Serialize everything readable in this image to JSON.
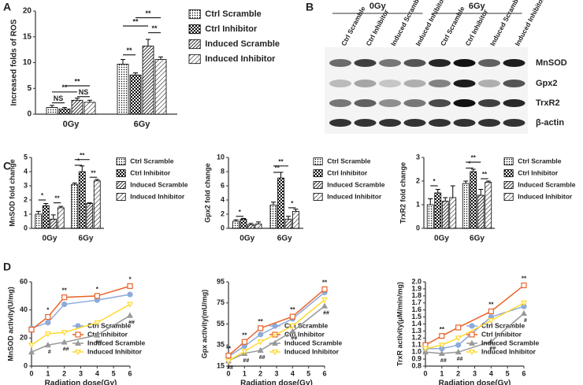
{
  "panels": [
    "A",
    "B",
    "C",
    "D"
  ],
  "blot": {
    "groups": [
      "0Gy",
      "6Gy"
    ],
    "lanes": [
      "Ctrl Scramble",
      "Ctrl Inhibitor",
      "Induced Scramble",
      "Induced Inhibitor",
      "Ctrl Scramble",
      "Ctrl Inhibitor",
      "Induced Scramble",
      "Induced Inhibitor"
    ],
    "rows": [
      "MnSOD",
      "Gpx2",
      "TrxR2",
      "β-actin"
    ]
  },
  "chart_data": [
    {
      "type": "bar",
      "ylabel": "Increased folds of ROS",
      "categories": [
        "0Gy",
        "6Gy"
      ],
      "ylim": [
        0,
        20
      ],
      "yticks": [
        0,
        5,
        10,
        15,
        20
      ],
      "series": [
        {
          "name": "Ctrl Scramble",
          "color": "#000000",
          "pattern": "dots",
          "values": [
            1.3,
            9.7
          ],
          "errors": [
            0.4,
            0.9
          ]
        },
        {
          "name": "Ctrl Inhibitor",
          "color": "#000000",
          "pattern": "checker",
          "values": [
            1.0,
            7.6
          ],
          "errors": [
            0.3,
            0.4
          ]
        },
        {
          "name": "Induced Scramble",
          "color": "#000000",
          "pattern": "hatch",
          "values": [
            2.7,
            13.2
          ],
          "errors": [
            0.4,
            1.3
          ]
        },
        {
          "name": "Induced Inhibitor",
          "color": "#000000",
          "pattern": "stripes",
          "values": [
            2.3,
            10.6
          ],
          "errors": [
            0.4,
            0.5
          ]
        }
      ],
      "annotations": [
        "NS",
        "NS",
        "**",
        "**",
        "**",
        "**",
        "**",
        "**"
      ]
    },
    {
      "type": "bar",
      "ylabel": "MnSOD fold change",
      "categories": [
        "0Gy",
        "6Gy"
      ],
      "ylim": [
        0,
        5
      ],
      "yticks": [
        0,
        1,
        2,
        3,
        4,
        5
      ],
      "series": [
        {
          "name": "Ctrl Scramble",
          "color": "#000000",
          "pattern": "dots",
          "values": [
            1.0,
            3.1
          ],
          "errors": [
            0.2,
            0.1
          ]
        },
        {
          "name": "Ctrl Inhibitor",
          "color": "#000000",
          "pattern": "checker",
          "values": [
            1.6,
            4.0
          ],
          "errors": [
            0.15,
            0.4
          ]
        },
        {
          "name": "Induced Scramble",
          "color": "#000000",
          "pattern": "hatch",
          "values": [
            0.65,
            1.75
          ],
          "errors": [
            0.3,
            0.05
          ]
        },
        {
          "name": "Induced Inhibitor",
          "color": "#000000",
          "pattern": "stripes",
          "values": [
            1.45,
            3.35
          ],
          "errors": [
            0.1,
            0.1
          ]
        }
      ],
      "annotations": [
        "*",
        "**",
        "*",
        "**",
        "**"
      ]
    },
    {
      "type": "bar",
      "ylabel": "Gpx2 fold change",
      "categories": [
        "0Gy",
        "6Gy"
      ],
      "ylim": [
        0,
        10
      ],
      "yticks": [
        0,
        2,
        4,
        6,
        8,
        10
      ],
      "series": [
        {
          "name": "Ctrl Scramble",
          "color": "#000000",
          "pattern": "dots",
          "values": [
            1.0,
            3.3
          ],
          "errors": [
            0.2,
            0.4
          ]
        },
        {
          "name": "Ctrl Inhibitor",
          "color": "#000000",
          "pattern": "checker",
          "values": [
            1.3,
            7.1
          ],
          "errors": [
            0.1,
            0.8
          ]
        },
        {
          "name": "Induced Scramble",
          "color": "#000000",
          "pattern": "hatch",
          "values": [
            0.5,
            1.3
          ],
          "errors": [
            0.2,
            0.4
          ]
        },
        {
          "name": "Induced Inhibitor",
          "color": "#000000",
          "pattern": "stripes",
          "values": [
            0.6,
            2.4
          ],
          "errors": [
            0.3,
            0.3
          ]
        }
      ],
      "annotations": [
        "*",
        "**",
        "**",
        "*"
      ]
    },
    {
      "type": "bar",
      "ylabel": "TrxR2 fold change",
      "categories": [
        "0Gy",
        "6Gy"
      ],
      "ylim": [
        0,
        3
      ],
      "yticks": [
        0,
        1,
        2,
        3
      ],
      "series": [
        {
          "name": "Ctrl Scramble",
          "color": "#000000",
          "pattern": "dots",
          "values": [
            1.0,
            1.9
          ],
          "errors": [
            0.25,
            0.1
          ]
        },
        {
          "name": "Ctrl Inhibitor",
          "color": "#000000",
          "pattern": "checker",
          "values": [
            1.5,
            2.4
          ],
          "errors": [
            0.15,
            0.1
          ]
        },
        {
          "name": "Induced Scramble",
          "color": "#000000",
          "pattern": "hatch",
          "values": [
            1.15,
            1.4
          ],
          "errors": [
            0.15,
            0.25
          ]
        },
        {
          "name": "Induced Inhibitor",
          "color": "#000000",
          "pattern": "stripes",
          "values": [
            1.3,
            1.95
          ],
          "errors": [
            0.5,
            0.05
          ]
        }
      ],
      "annotations": [
        "*",
        "*",
        "**",
        "**"
      ]
    },
    {
      "type": "line",
      "ylabel": "MnSOD activity(U/mg)",
      "xlabel": "Radiation dose(Gy)",
      "x": [
        0,
        1,
        2,
        4,
        6
      ],
      "xlim": [
        0,
        6
      ],
      "xticks": [
        0,
        1,
        2,
        3,
        4,
        5,
        6
      ],
      "ylim": [
        0,
        60
      ],
      "yticks": [
        0,
        20,
        40,
        60
      ],
      "series": [
        {
          "name": "Ctrl Scramble",
          "color": "#8eaadb",
          "marker": "circle",
          "values": [
            27,
            31,
            44,
            47,
            51
          ]
        },
        {
          "name": "Ctrl Inhibitor",
          "color": "#e8632a",
          "marker": "square",
          "values": [
            26,
            35,
            49,
            50,
            57
          ]
        },
        {
          "name": "Induced Scramble",
          "color": "#999999",
          "marker": "triangle",
          "values": [
            10,
            15,
            17,
            22,
            36
          ]
        },
        {
          "name": "Induced Inhibitor",
          "color": "#ffd92f",
          "marker": "triangle-down",
          "values": [
            15,
            23,
            24,
            31,
            44
          ]
        }
      ],
      "annotations": [
        {
          "x": 1,
          "label": "*"
        },
        {
          "x": 2,
          "label": "**"
        },
        {
          "x": 4,
          "label": "*"
        },
        {
          "x": 6,
          "label": "*"
        }
      ],
      "low_annotations": [
        {
          "x": 1,
          "label": "#"
        },
        {
          "x": 2,
          "label": "##"
        },
        {
          "x": 4,
          "label": "##"
        },
        {
          "x": 6,
          "label": "##"
        }
      ]
    },
    {
      "type": "line",
      "ylabel": "Gpx activity(mU/mg)",
      "xlabel": "Radiation dose(Gy)",
      "x": [
        0,
        1,
        2,
        4,
        6
      ],
      "xlim": [
        0,
        6
      ],
      "xticks": [
        0,
        1,
        2,
        3,
        4,
        5,
        6
      ],
      "ylim": [
        15,
        95
      ],
      "yticks": [
        15,
        35,
        55,
        75,
        95
      ],
      "series": [
        {
          "name": "Ctrl Scramble",
          "color": "#8eaadb",
          "marker": "circle",
          "values": [
            24,
            34,
            45,
            60,
            85
          ]
        },
        {
          "name": "Ctrl Inhibitor",
          "color": "#e8632a",
          "marker": "square",
          "values": [
            25,
            38,
            51,
            62,
            88
          ]
        },
        {
          "name": "Induced Scramble",
          "color": "#999999",
          "marker": "triangle",
          "values": [
            20,
            27,
            30,
            48,
            72
          ]
        },
        {
          "name": "Induced Inhibitor",
          "color": "#ffd92f",
          "marker": "triangle-down",
          "values": [
            20,
            29,
            38,
            53,
            78
          ]
        }
      ],
      "annotations": [
        {
          "x": 0,
          "label": "**"
        },
        {
          "x": 1,
          "label": "**"
        },
        {
          "x": 2,
          "label": "**"
        },
        {
          "x": 4,
          "label": "**"
        },
        {
          "x": 6,
          "label": "**"
        }
      ],
      "low_annotations": [
        {
          "x": 0,
          "label": "##"
        },
        {
          "x": 1,
          "label": "##"
        },
        {
          "x": 2,
          "label": "##"
        },
        {
          "x": 4,
          "label": "##"
        },
        {
          "x": 6,
          "label": "##"
        }
      ]
    },
    {
      "type": "line",
      "ylabel": "TrxR activity(μM/min/mg)",
      "xlabel": "Radiation dose(Gy)",
      "x": [
        0,
        1,
        2,
        4,
        6
      ],
      "xlim": [
        0,
        6
      ],
      "xticks": [
        0,
        1,
        2,
        3,
        4,
        5,
        6
      ],
      "ylim": [
        0.8,
        2.0
      ],
      "yticks": [
        0.8,
        0.9,
        {
          "value": 1.0,
          "label": "1.0"
        },
        1.1,
        1.2,
        1.3,
        1.4,
        1.5,
        1.6,
        1.7,
        1.8,
        1.9,
        {
          "value": 2.0,
          "label": "2.0"
        }
      ],
      "series": [
        {
          "name": "Ctrl Scramble",
          "color": "#8eaadb",
          "marker": "circle",
          "values": [
            1.05,
            1.05,
            1.1,
            1.5,
            1.65
          ]
        },
        {
          "name": "Ctrl Inhibitor",
          "color": "#e8632a",
          "marker": "square",
          "values": [
            1.1,
            1.23,
            1.35,
            1.58,
            1.95
          ]
        },
        {
          "name": "Induced Scramble",
          "color": "#999999",
          "marker": "triangle",
          "values": [
            1.0,
            0.98,
            1.0,
            1.15,
            1.55
          ]
        },
        {
          "name": "Induced Inhibitor",
          "color": "#ffd92f",
          "marker": "triangle-down",
          "values": [
            1.05,
            1.1,
            1.2,
            1.45,
            1.7
          ]
        }
      ],
      "annotations": [
        {
          "x": 1,
          "label": "**"
        },
        {
          "x": 4,
          "label": "**"
        },
        {
          "x": 6,
          "label": "**"
        }
      ],
      "low_annotations": [
        {
          "x": 1,
          "label": "##"
        },
        {
          "x": 2,
          "label": "##"
        },
        {
          "x": 4,
          "label": "##"
        },
        {
          "x": 6,
          "label": "#"
        }
      ]
    }
  ]
}
